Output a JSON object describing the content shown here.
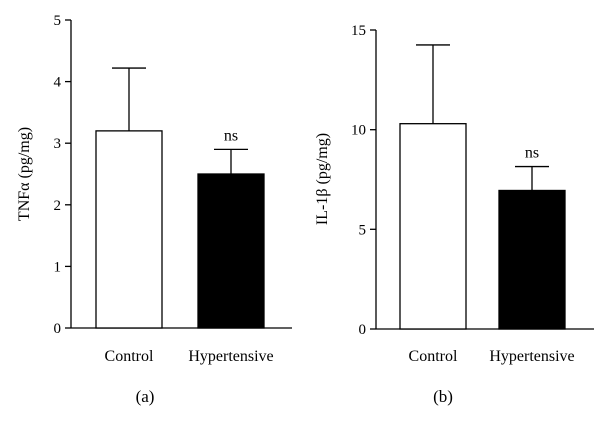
{
  "chart_data": [
    {
      "type": "bar",
      "panel_label": "(a)",
      "ylabel": "TNFα (pg/mg)",
      "categories": [
        "Control",
        "Hypertensive"
      ],
      "values": [
        3.2,
        2.5
      ],
      "error_upper": [
        4.22,
        2.9
      ],
      "annotations": [
        "",
        "ns"
      ],
      "ylim": [
        0,
        5
      ],
      "yticks": [
        "0",
        "1",
        "2",
        "3",
        "4",
        "5"
      ],
      "bar_colors": [
        "#ffffff",
        "#000000"
      ],
      "grid": false,
      "legend": "none"
    },
    {
      "type": "bar",
      "panel_label": "(b)",
      "ylabel": "IL-1β (pg/mg)",
      "categories": [
        "Control",
        "Hypertensive"
      ],
      "values": [
        10.3,
        6.95
      ],
      "error_upper": [
        14.25,
        8.15
      ],
      "annotations": [
        "",
        "ns"
      ],
      "ylim": [
        0,
        15
      ],
      "yticks": [
        "0",
        "5",
        "10",
        "15"
      ],
      "bar_colors": [
        "#ffffff",
        "#000000"
      ],
      "grid": false,
      "legend": "none"
    }
  ]
}
